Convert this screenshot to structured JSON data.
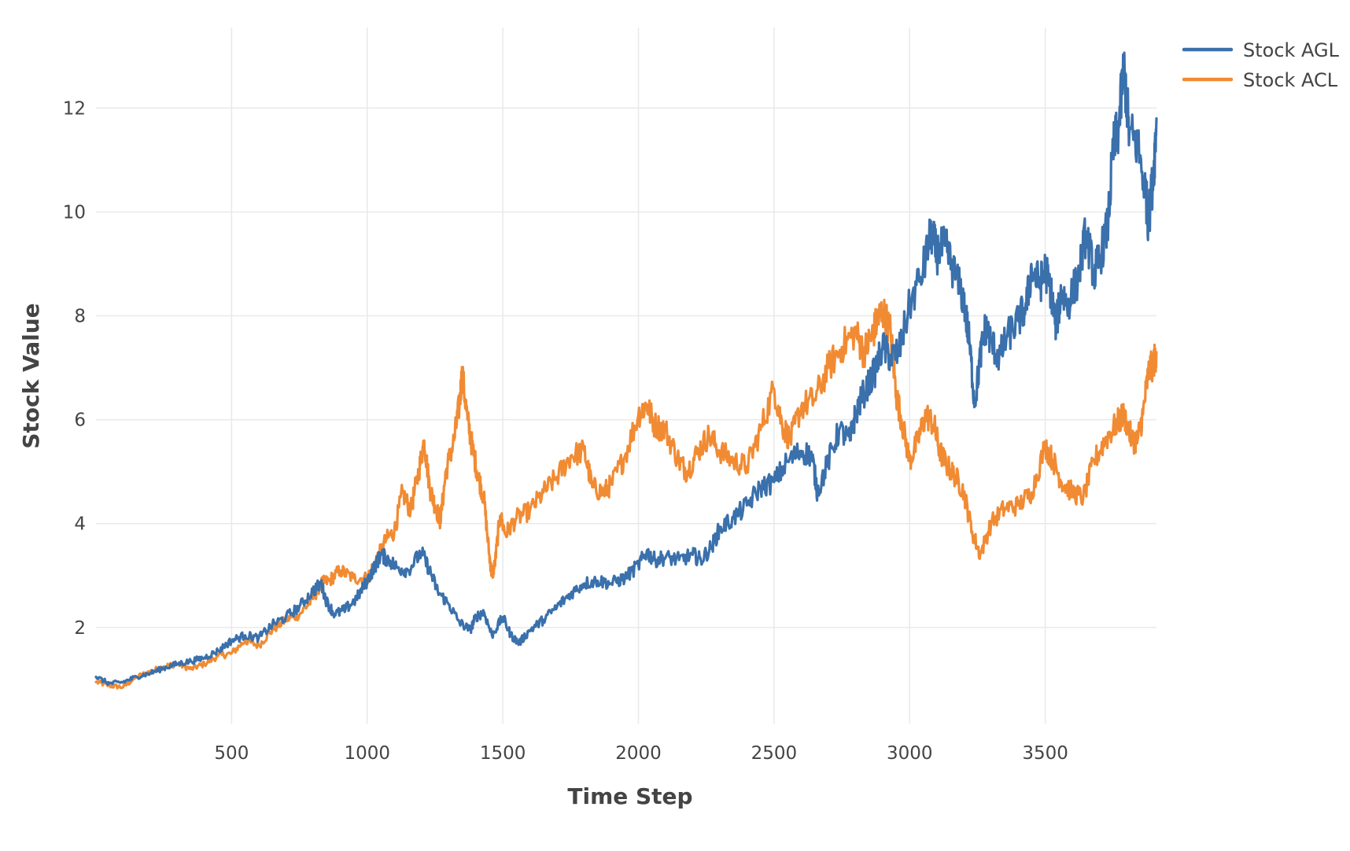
{
  "chart_data": {
    "type": "line",
    "title": "",
    "xlabel": "Time Step",
    "ylabel": "Stock Value",
    "xlim": [
      0,
      3910
    ],
    "ylim": [
      0.15,
      13.55
    ],
    "x_ticks": [
      500,
      1000,
      1500,
      2000,
      2500,
      3000,
      3500
    ],
    "y_ticks": [
      2,
      4,
      6,
      8,
      10,
      12
    ],
    "grid": true,
    "legend_position": "top-right",
    "series": [
      {
        "name": "Stock AGL",
        "color": "#3a70ab",
        "points": [
          [
            0,
            1.05
          ],
          [
            50,
            0.92
          ],
          [
            100,
            0.95
          ],
          [
            150,
            1.05
          ],
          [
            200,
            1.12
          ],
          [
            250,
            1.22
          ],
          [
            300,
            1.3
          ],
          [
            350,
            1.35
          ],
          [
            400,
            1.42
          ],
          [
            450,
            1.55
          ],
          [
            500,
            1.75
          ],
          [
            550,
            1.85
          ],
          [
            600,
            1.8
          ],
          [
            650,
            2.05
          ],
          [
            700,
            2.2
          ],
          [
            750,
            2.4
          ],
          [
            800,
            2.7
          ],
          [
            830,
            2.85
          ],
          [
            850,
            2.5
          ],
          [
            880,
            2.25
          ],
          [
            920,
            2.35
          ],
          [
            960,
            2.55
          ],
          [
            1000,
            2.9
          ],
          [
            1030,
            3.2
          ],
          [
            1050,
            3.4
          ],
          [
            1080,
            3.3
          ],
          [
            1110,
            3.15
          ],
          [
            1150,
            3.1
          ],
          [
            1200,
            3.45
          ],
          [
            1230,
            3.1
          ],
          [
            1260,
            2.7
          ],
          [
            1300,
            2.45
          ],
          [
            1340,
            2.1
          ],
          [
            1380,
            1.95
          ],
          [
            1400,
            2.2
          ],
          [
            1430,
            2.3
          ],
          [
            1460,
            1.85
          ],
          [
            1500,
            2.2
          ],
          [
            1530,
            1.85
          ],
          [
            1560,
            1.7
          ],
          [
            1600,
            1.95
          ],
          [
            1650,
            2.15
          ],
          [
            1700,
            2.4
          ],
          [
            1750,
            2.65
          ],
          [
            1800,
            2.85
          ],
          [
            1850,
            2.9
          ],
          [
            1900,
            2.85
          ],
          [
            1950,
            2.95
          ],
          [
            2000,
            3.2
          ],
          [
            2030,
            3.45
          ],
          [
            2060,
            3.3
          ],
          [
            2100,
            3.35
          ],
          [
            2150,
            3.3
          ],
          [
            2200,
            3.4
          ],
          [
            2230,
            3.3
          ],
          [
            2270,
            3.55
          ],
          [
            2300,
            3.9
          ],
          [
            2350,
            4.1
          ],
          [
            2400,
            4.35
          ],
          [
            2450,
            4.7
          ],
          [
            2500,
            4.8
          ],
          [
            2550,
            5.2
          ],
          [
            2600,
            5.4
          ],
          [
            2640,
            5.3
          ],
          [
            2660,
            4.6
          ],
          [
            2700,
            5.2
          ],
          [
            2740,
            5.8
          ],
          [
            2780,
            5.6
          ],
          [
            2800,
            6.1
          ],
          [
            2830,
            6.5
          ],
          [
            2870,
            6.9
          ],
          [
            2900,
            7.4
          ],
          [
            2930,
            7.2
          ],
          [
            2960,
            7.3
          ],
          [
            3000,
            8.2
          ],
          [
            3050,
            8.9
          ],
          [
            3080,
            9.6
          ],
          [
            3100,
            9.2
          ],
          [
            3130,
            9.35
          ],
          [
            3160,
            8.9
          ],
          [
            3200,
            8.3
          ],
          [
            3220,
            7.5
          ],
          [
            3240,
            6.3
          ],
          [
            3260,
            7.2
          ],
          [
            3280,
            7.8
          ],
          [
            3300,
            7.5
          ],
          [
            3330,
            7.2
          ],
          [
            3360,
            7.6
          ],
          [
            3400,
            7.9
          ],
          [
            3430,
            8.2
          ],
          [
            3450,
            8.9
          ],
          [
            3480,
            8.6
          ],
          [
            3500,
            8.9
          ],
          [
            3520,
            8.5
          ],
          [
            3540,
            7.8
          ],
          [
            3560,
            8.5
          ],
          [
            3580,
            8.2
          ],
          [
            3620,
            8.7
          ],
          [
            3650,
            9.6
          ],
          [
            3680,
            8.8
          ],
          [
            3700,
            9.1
          ],
          [
            3730,
            9.7
          ],
          [
            3750,
            11.2
          ],
          [
            3770,
            11.6
          ],
          [
            3790,
            12.8
          ],
          [
            3810,
            11.5
          ],
          [
            3840,
            11.3
          ],
          [
            3870,
            10.4
          ],
          [
            3880,
            9.8
          ],
          [
            3900,
            10.8
          ],
          [
            3910,
            11.8
          ]
        ]
      },
      {
        "name": "Stock ACL",
        "color": "#f18b33",
        "points": [
          [
            0,
            0.95
          ],
          [
            50,
            0.88
          ],
          [
            100,
            0.85
          ],
          [
            150,
            1.05
          ],
          [
            200,
            1.15
          ],
          [
            250,
            1.25
          ],
          [
            300,
            1.3
          ],
          [
            350,
            1.2
          ],
          [
            400,
            1.3
          ],
          [
            450,
            1.45
          ],
          [
            500,
            1.5
          ],
          [
            550,
            1.75
          ],
          [
            600,
            1.65
          ],
          [
            650,
            1.95
          ],
          [
            700,
            2.15
          ],
          [
            750,
            2.25
          ],
          [
            800,
            2.55
          ],
          [
            830,
            2.85
          ],
          [
            860,
            2.9
          ],
          [
            900,
            3.1
          ],
          [
            950,
            2.95
          ],
          [
            1000,
            2.95
          ],
          [
            1030,
            3.25
          ],
          [
            1070,
            3.7
          ],
          [
            1100,
            3.85
          ],
          [
            1130,
            4.6
          ],
          [
            1160,
            4.25
          ],
          [
            1190,
            5.0
          ],
          [
            1210,
            5.6
          ],
          [
            1230,
            4.7
          ],
          [
            1250,
            4.35
          ],
          [
            1270,
            4.05
          ],
          [
            1290,
            5.0
          ],
          [
            1320,
            5.6
          ],
          [
            1340,
            6.3
          ],
          [
            1350,
            6.9
          ],
          [
            1370,
            6.0
          ],
          [
            1390,
            5.4
          ],
          [
            1410,
            4.9
          ],
          [
            1430,
            4.5
          ],
          [
            1450,
            3.4
          ],
          [
            1460,
            3.0
          ],
          [
            1470,
            3.2
          ],
          [
            1490,
            4.15
          ],
          [
            1510,
            3.8
          ],
          [
            1550,
            4.1
          ],
          [
            1600,
            4.25
          ],
          [
            1650,
            4.6
          ],
          [
            1700,
            4.9
          ],
          [
            1750,
            5.3
          ],
          [
            1800,
            5.4
          ],
          [
            1830,
            4.7
          ],
          [
            1870,
            4.6
          ],
          [
            1900,
            4.75
          ],
          [
            1950,
            5.3
          ],
          [
            2000,
            6.1
          ],
          [
            2030,
            6.3
          ],
          [
            2060,
            5.9
          ],
          [
            2100,
            5.8
          ],
          [
            2150,
            5.2
          ],
          [
            2180,
            5.0
          ],
          [
            2220,
            5.4
          ],
          [
            2260,
            5.7
          ],
          [
            2300,
            5.4
          ],
          [
            2350,
            5.2
          ],
          [
            2400,
            5.1
          ],
          [
            2450,
            5.8
          ],
          [
            2500,
            6.6
          ],
          [
            2530,
            5.9
          ],
          [
            2560,
            5.6
          ],
          [
            2600,
            6.25
          ],
          [
            2650,
            6.4
          ],
          [
            2700,
            7.0
          ],
          [
            2750,
            7.4
          ],
          [
            2800,
            7.7
          ],
          [
            2830,
            7.3
          ],
          [
            2860,
            7.6
          ],
          [
            2880,
            7.9
          ],
          [
            2900,
            8.1
          ],
          [
            2930,
            7.7
          ],
          [
            2950,
            6.5
          ],
          [
            2970,
            6.0
          ],
          [
            3000,
            5.2
          ],
          [
            3030,
            5.6
          ],
          [
            3060,
            6.1
          ],
          [
            3090,
            5.9
          ],
          [
            3110,
            5.4
          ],
          [
            3140,
            5.1
          ],
          [
            3170,
            4.9
          ],
          [
            3200,
            4.6
          ],
          [
            3230,
            3.85
          ],
          [
            3260,
            3.4
          ],
          [
            3300,
            4.0
          ],
          [
            3350,
            4.3
          ],
          [
            3400,
            4.35
          ],
          [
            3450,
            4.6
          ],
          [
            3500,
            5.5
          ],
          [
            3530,
            5.2
          ],
          [
            3560,
            4.8
          ],
          [
            3600,
            4.6
          ],
          [
            3640,
            4.5
          ],
          [
            3680,
            5.2
          ],
          [
            3720,
            5.6
          ],
          [
            3760,
            5.9
          ],
          [
            3790,
            6.1
          ],
          [
            3820,
            5.6
          ],
          [
            3840,
            5.6
          ],
          [
            3860,
            6.1
          ],
          [
            3880,
            6.9
          ],
          [
            3900,
            7.1
          ],
          [
            3910,
            7.3
          ]
        ]
      }
    ]
  }
}
